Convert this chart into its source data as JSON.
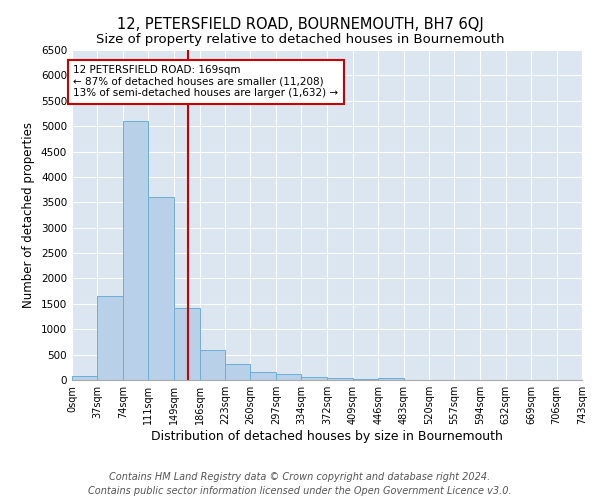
{
  "title": "12, PETERSFIELD ROAD, BOURNEMOUTH, BH7 6QJ",
  "subtitle": "Size of property relative to detached houses in Bournemouth",
  "xlabel": "Distribution of detached houses by size in Bournemouth",
  "ylabel": "Number of detached properties",
  "footnote1": "Contains HM Land Registry data © Crown copyright and database right 2024.",
  "footnote2": "Contains public sector information licensed under the Open Government Licence v3.0.",
  "bin_edges": [
    0,
    37,
    74,
    111,
    149,
    186,
    223,
    260,
    297,
    334,
    372,
    409,
    446,
    483,
    520,
    557,
    594,
    632,
    669,
    706,
    743
  ],
  "bar_heights": [
    75,
    1650,
    5100,
    3600,
    1420,
    600,
    310,
    160,
    120,
    50,
    30,
    15,
    30,
    0,
    0,
    0,
    0,
    0,
    0,
    0
  ],
  "tick_labels": [
    "0sqm",
    "37sqm",
    "74sqm",
    "111sqm",
    "149sqm",
    "186sqm",
    "223sqm",
    "260sqm",
    "297sqm",
    "334sqm",
    "372sqm",
    "409sqm",
    "446sqm",
    "483sqm",
    "520sqm",
    "557sqm",
    "594sqm",
    "632sqm",
    "669sqm",
    "706sqm",
    "743sqm"
  ],
  "bar_color": "#b8d0e8",
  "bar_edge_color": "#6baed6",
  "vline_x": 169,
  "vline_color": "#cc0000",
  "annotation_line1": "12 PETERSFIELD ROAD: 169sqm",
  "annotation_line2": "← 87% of detached houses are smaller (11,208)",
  "annotation_line3": "13% of semi-detached houses are larger (1,632) →",
  "annotation_box_color": "#cc0000",
  "ylim": [
    0,
    6500
  ],
  "yticks": [
    0,
    500,
    1000,
    1500,
    2000,
    2500,
    3000,
    3500,
    4000,
    4500,
    5000,
    5500,
    6000,
    6500
  ],
  "background_color": "#dce6f0",
  "grid_color": "#ffffff",
  "title_fontsize": 10.5,
  "subtitle_fontsize": 9.5,
  "xlabel_fontsize": 9,
  "ylabel_fontsize": 8.5,
  "footnote_fontsize": 7
}
